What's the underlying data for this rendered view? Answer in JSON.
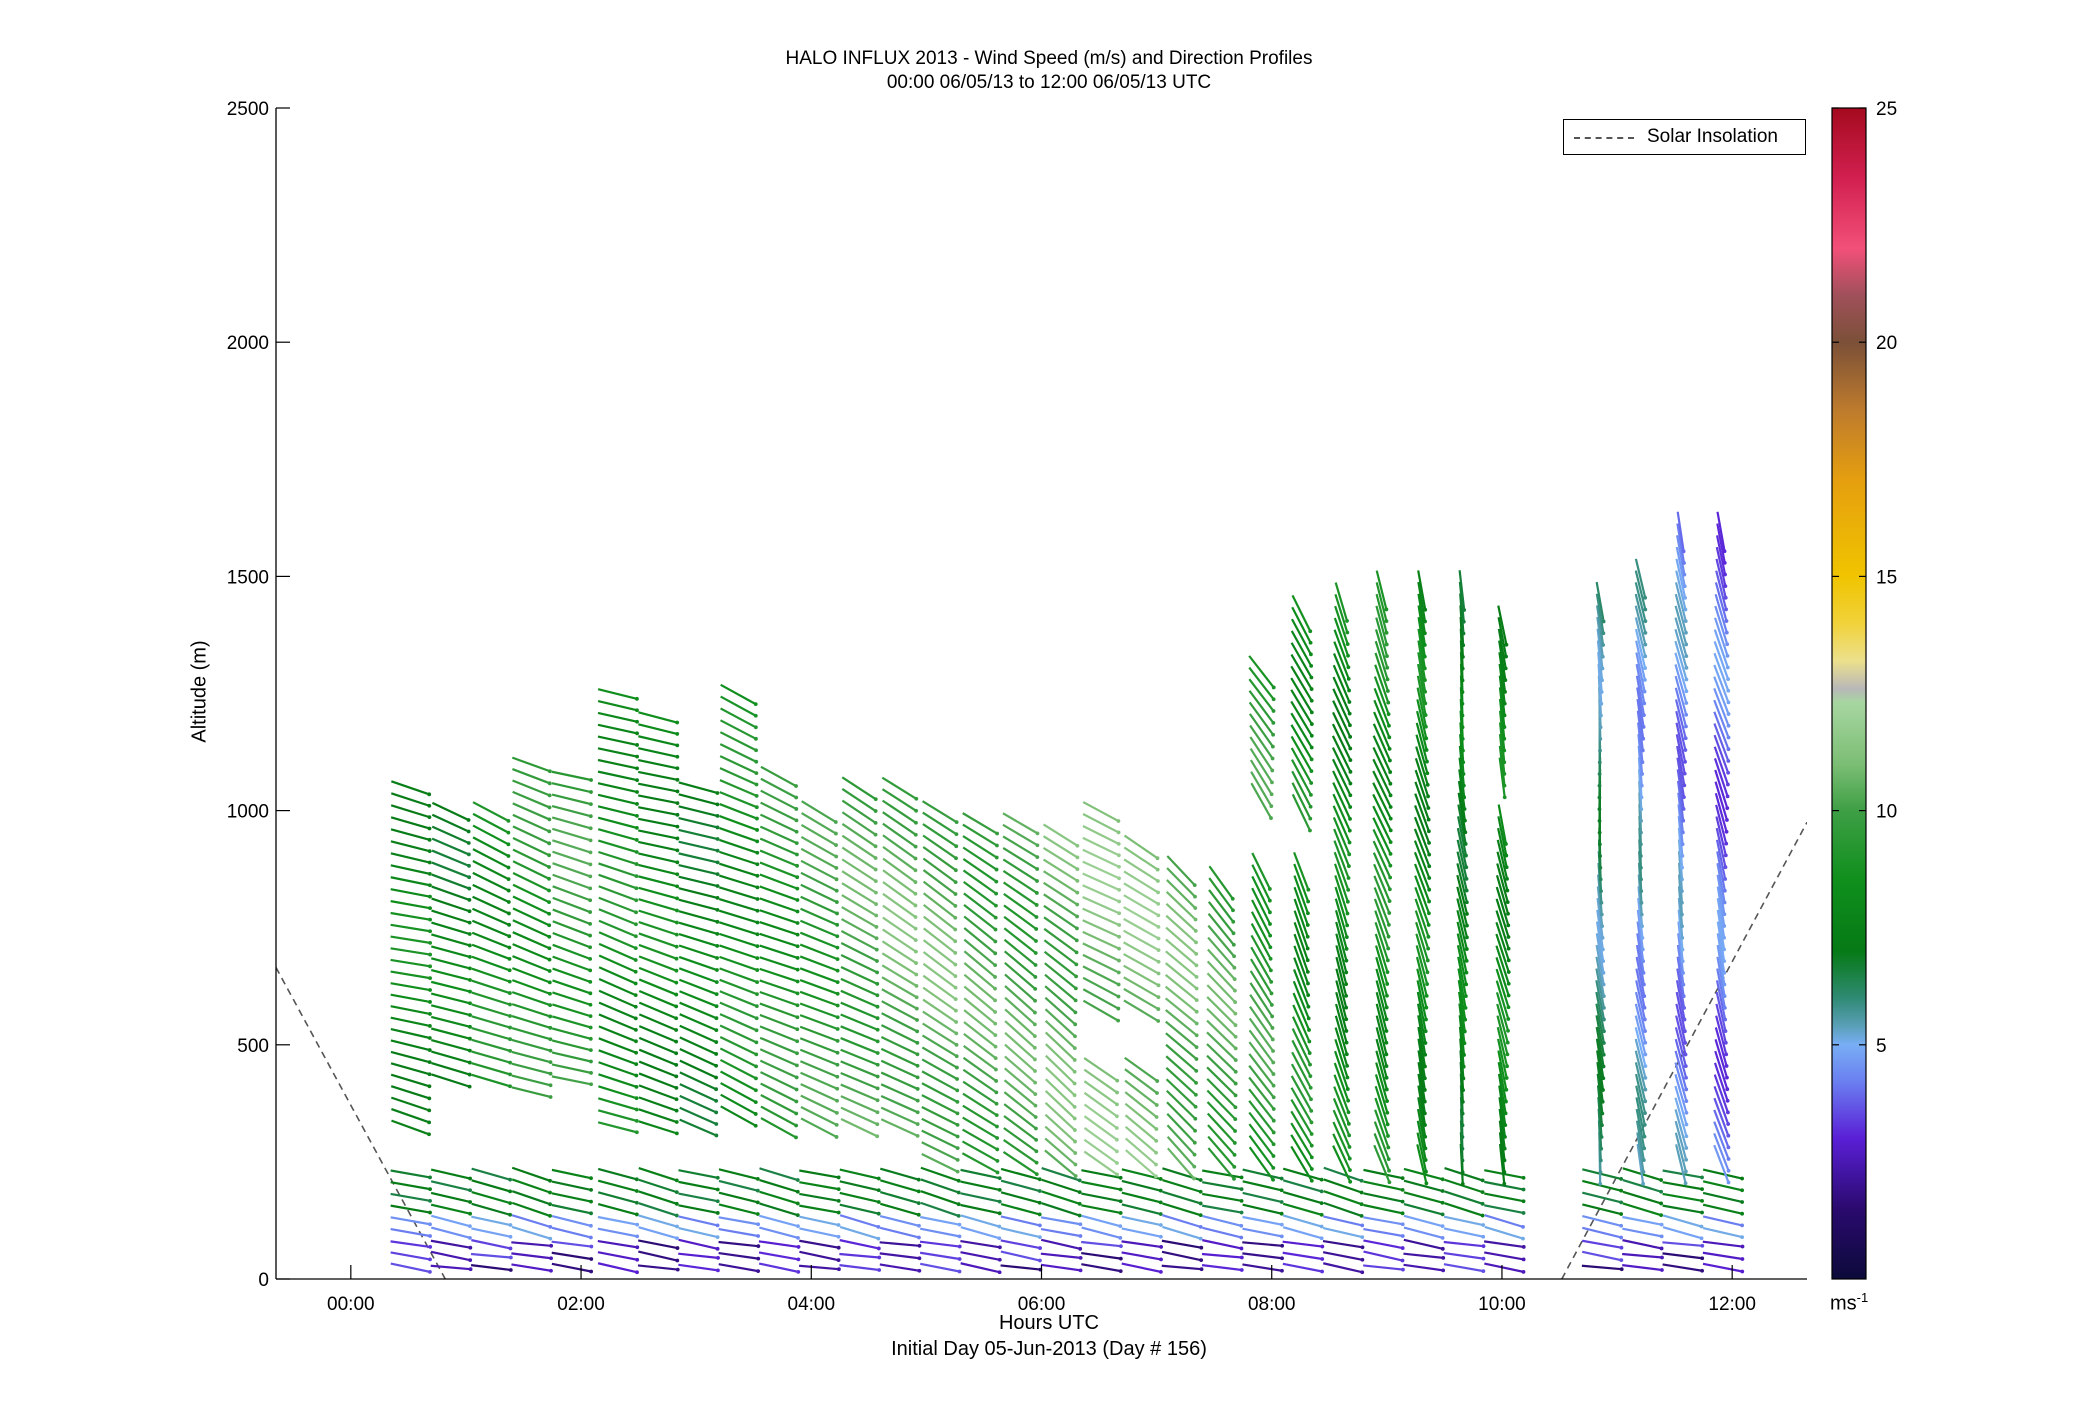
{
  "header": {
    "title": "HALO INFLUX 2013 - Wind Speed (m/s) and Direction Profiles",
    "subtitle": "00:00 06/05/13 to 12:00 06/05/13  UTC"
  },
  "axes": {
    "xlabel": "Hours UTC",
    "xsublabel": "Initial Day 05-Jun-2013 (Day # 156)",
    "ylabel": "Altitude (m)",
    "colorbar_unit": "ms-1"
  },
  "legend": {
    "label": "Solar Insolation"
  },
  "chart_data": {
    "type": "scatter",
    "mark": "wind arrows",
    "title": "HALO INFLUX 2013 - Wind Speed (m/s) and Direction Profiles",
    "subtitle": "00:00 06/05/13 to 12:00 06/05/13  UTC",
    "xlabel": "Hours UTC",
    "ylabel": "Altitude (m)",
    "xlim": [
      -0.65,
      12.65
    ],
    "ylim": [
      0,
      2500
    ],
    "xticks": [
      0,
      2,
      4,
      6,
      8,
      10,
      12
    ],
    "xtick_labels": [
      "00:00",
      "02:00",
      "04:00",
      "06:00",
      "08:00",
      "10:00",
      "12:00"
    ],
    "yticks": [
      0,
      500,
      1000,
      1500,
      2000,
      2500
    ],
    "ytick_labels": [
      "0",
      "500",
      "1000",
      "1500",
      "2000",
      "2500"
    ],
    "colorbar": {
      "range": [
        0,
        25
      ],
      "ticks": [
        5,
        10,
        15,
        20,
        25
      ],
      "tick_labels": [
        "5",
        "10",
        "15",
        "20",
        "25"
      ],
      "unit": "ms-1",
      "stops": [
        {
          "v": 0,
          "color": "#0c0a3a"
        },
        {
          "v": 1.5,
          "color": "#2a0a6e"
        },
        {
          "v": 3,
          "color": "#5a1fd6"
        },
        {
          "v": 4.2,
          "color": "#6a7ef0"
        },
        {
          "v": 5,
          "color": "#78aef5"
        },
        {
          "v": 5.4,
          "color": "#5a9fb8"
        },
        {
          "v": 6,
          "color": "#2f8a73"
        },
        {
          "v": 7,
          "color": "#067a16"
        },
        {
          "v": 8.5,
          "color": "#0f8f1c"
        },
        {
          "v": 10,
          "color": "#3e9f45"
        },
        {
          "v": 11,
          "color": "#7cbe75"
        },
        {
          "v": 12.3,
          "color": "#a7d6a0"
        },
        {
          "v": 12.6,
          "color": "#b8b8b8"
        },
        {
          "v": 13.2,
          "color": "#ece08c"
        },
        {
          "v": 14,
          "color": "#f1d23a"
        },
        {
          "v": 15,
          "color": "#f0c400"
        },
        {
          "v": 17,
          "color": "#e6a00e"
        },
        {
          "v": 18.5,
          "color": "#bf7c2c"
        },
        {
          "v": 20,
          "color": "#7b5038"
        },
        {
          "v": 21,
          "color": "#a0505a"
        },
        {
          "v": 22,
          "color": "#f25078"
        },
        {
          "v": 23.5,
          "color": "#d22050"
        },
        {
          "v": 25,
          "color": "#a40a1e"
        }
      ]
    },
    "solar_insolation": [
      {
        "x": [
          -0.65,
          0.82
        ],
        "y": [
          665,
          0
        ]
      },
      {
        "x": [
          10.52,
          12.65
        ],
        "y": [
          0,
          975
        ]
      }
    ],
    "profiles": [
      {
        "t": 0.5,
        "top": 1060,
        "dir": 285,
        "speed": 8.0,
        "gaps": [
          [
            240,
            300
          ]
        ]
      },
      {
        "t": 0.85,
        "top": 1000,
        "dir": 290,
        "speed": 7.5,
        "gaps": [
          [
            240,
            420
          ]
        ]
      },
      {
        "t": 1.2,
        "top": 1000,
        "dir": 292,
        "speed": 8.5,
        "gaps": [
          [
            240,
            400
          ]
        ]
      },
      {
        "t": 1.55,
        "top": 1100,
        "dir": 290,
        "speed": 9.0,
        "gaps": [
          [
            240,
            380
          ]
        ]
      },
      {
        "t": 1.9,
        "top": 1090,
        "dir": 285,
        "speed": 9.5,
        "gaps": [
          [
            240,
            400
          ]
        ]
      },
      {
        "t": 2.3,
        "top": 1260,
        "dir": 288,
        "speed": 8.5,
        "gaps": [
          [
            240,
            320
          ]
        ]
      },
      {
        "t": 2.65,
        "top": 1200,
        "dir": 287,
        "speed": 8.0,
        "gaps": [
          [
            240,
            300
          ]
        ]
      },
      {
        "t": 3.0,
        "top": 1060,
        "dir": 289,
        "speed": 7.5,
        "gaps": [
          [
            240,
            300
          ]
        ]
      },
      {
        "t": 3.35,
        "top": 1250,
        "dir": 293,
        "speed": 8.5,
        "gaps": [
          [
            240,
            330
          ]
        ]
      },
      {
        "t": 3.7,
        "top": 1080,
        "dir": 294,
        "speed": 9.0,
        "gaps": [
          [
            240,
            310
          ]
        ]
      },
      {
        "t": 4.05,
        "top": 1000,
        "dir": 296,
        "speed": 9.5,
        "gaps": [
          [
            240,
            320
          ]
        ]
      },
      {
        "t": 4.4,
        "top": 1060,
        "dir": 298,
        "speed": 10.0,
        "gaps": [
          [
            240,
            300
          ]
        ]
      },
      {
        "t": 4.75,
        "top": 1060,
        "dir": 300,
        "speed": 10.5,
        "gaps": [
          [
            240,
            300
          ]
        ]
      },
      {
        "t": 5.1,
        "top": 1010,
        "dir": 302,
        "speed": 10.5,
        "gaps": []
      },
      {
        "t": 5.45,
        "top": 990,
        "dir": 304,
        "speed": 10.0,
        "gaps": []
      },
      {
        "t": 5.8,
        "top": 980,
        "dir": 306,
        "speed": 10.0,
        "gaps": []
      },
      {
        "t": 6.15,
        "top": 960,
        "dir": 308,
        "speed": 10.5,
        "gaps": []
      },
      {
        "t": 6.5,
        "top": 1000,
        "dir": 300,
        "speed": 11.0,
        "gaps": [
          [
            470,
            560
          ]
        ]
      },
      {
        "t": 6.85,
        "top": 940,
        "dir": 305,
        "speed": 11.0,
        "gaps": [
          [
            470,
            560
          ]
        ]
      },
      {
        "t": 7.2,
        "top": 880,
        "dir": 315,
        "speed": 10.5,
        "gaps": []
      },
      {
        "t": 7.55,
        "top": 860,
        "dir": 320,
        "speed": 10.0,
        "gaps": []
      },
      {
        "t": 7.9,
        "top": 1300,
        "dir": 328,
        "speed": 9.5,
        "gaps": [
          [
            900,
            1000
          ]
        ]
      },
      {
        "t": 8.25,
        "top": 1440,
        "dir": 335,
        "speed": 8.5,
        "gaps": [
          [
            900,
            980
          ]
        ]
      },
      {
        "t": 8.6,
        "top": 1450,
        "dir": 340,
        "speed": 8.0,
        "gaps": []
      },
      {
        "t": 8.95,
        "top": 1480,
        "dir": 340,
        "speed": 8.5,
        "gaps": []
      },
      {
        "t": 9.3,
        "top": 1490,
        "dir": 345,
        "speed": 8.0,
        "gaps": []
      },
      {
        "t": 9.65,
        "top": 1490,
        "dir": 352,
        "speed": 7.5,
        "gaps": []
      },
      {
        "t": 10.0,
        "top": 1400,
        "dir": 348,
        "speed": 8.0,
        "gaps": [
          [
            1000,
            1060
          ]
        ]
      },
      {
        "t": 10.85,
        "top": 1450,
        "dir": 355,
        "speed": 6.0,
        "gaps": []
      },
      {
        "t": 11.2,
        "top": 1520,
        "dir": 352,
        "speed": 5.0,
        "gaps": []
      },
      {
        "t": 11.55,
        "top": 1600,
        "dir": 350,
        "speed": 4.5,
        "gaps": []
      },
      {
        "t": 11.9,
        "top": 1600,
        "dir": 345,
        "speed": 4.0,
        "gaps": []
      }
    ]
  }
}
